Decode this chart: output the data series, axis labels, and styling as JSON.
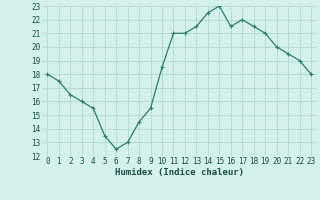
{
  "xlabel": "Humidex (Indice chaleur)",
  "x": [
    0,
    1,
    2,
    3,
    4,
    5,
    6,
    7,
    8,
    9,
    10,
    11,
    12,
    13,
    14,
    15,
    16,
    17,
    18,
    19,
    20,
    21,
    22,
    23
  ],
  "y": [
    18,
    17.5,
    16.5,
    16,
    15.5,
    13.5,
    12.5,
    13,
    14.5,
    15.5,
    18.5,
    21,
    21,
    21.5,
    22.5,
    23,
    21.5,
    22,
    21.5,
    21,
    20,
    19.5,
    19,
    18
  ],
  "line_color": "#2e7d6e",
  "marker": "+",
  "marker_size": 3,
  "marker_lw": 0.8,
  "line_width": 0.9,
  "bg_color": "#d4f0eb",
  "grid_color": "#aad4cc",
  "axis_label_color": "#1a4d45",
  "tick_label_color": "#1a4d45",
  "ylim": [
    12,
    23
  ],
  "yticks": [
    12,
    13,
    14,
    15,
    16,
    17,
    18,
    19,
    20,
    21,
    22,
    23
  ],
  "xticks": [
    0,
    1,
    2,
    3,
    4,
    5,
    6,
    7,
    8,
    9,
    10,
    11,
    12,
    13,
    14,
    15,
    16,
    17,
    18,
    19,
    20,
    21,
    22,
    23
  ],
  "label_fontsize": 6.5,
  "tick_fontsize": 5.5
}
